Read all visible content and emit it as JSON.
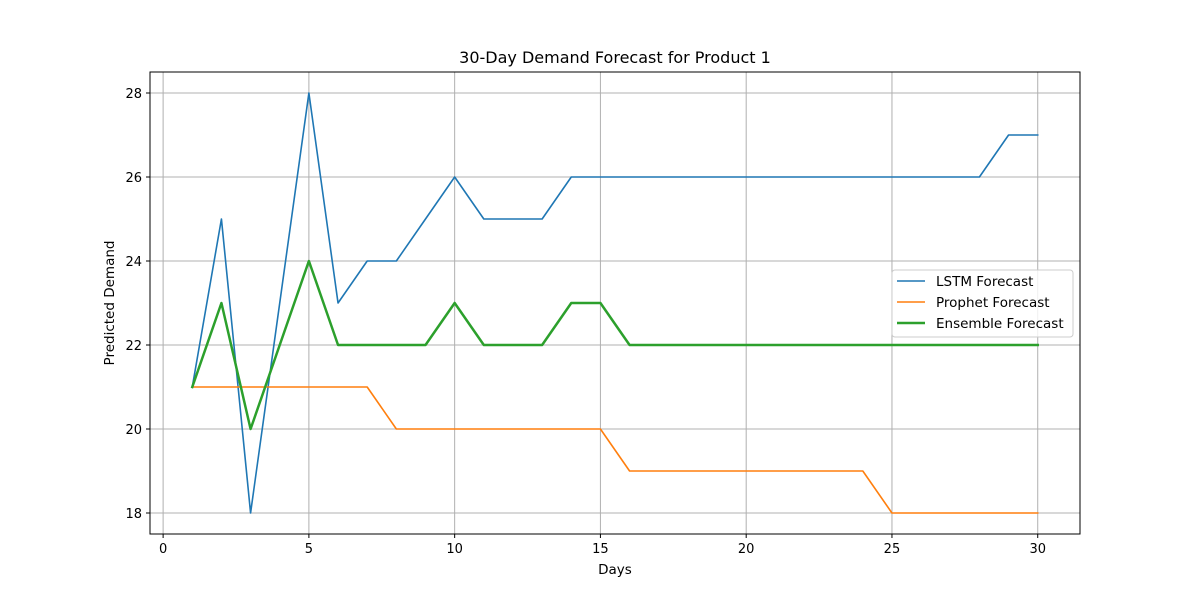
{
  "chart_data": {
    "type": "line",
    "title": "30-Day Demand Forecast for Product 1",
    "xlabel": "Days",
    "ylabel": "Predicted Demand",
    "xlim": [
      -0.45,
      31.45
    ],
    "ylim": [
      17.5,
      28.5
    ],
    "xticks": [
      0,
      5,
      10,
      15,
      20,
      25,
      30
    ],
    "yticks": [
      18,
      20,
      22,
      24,
      26,
      28
    ],
    "grid": true,
    "legend_position": "center-right",
    "x": [
      1,
      2,
      3,
      4,
      5,
      6,
      7,
      8,
      9,
      10,
      11,
      12,
      13,
      14,
      15,
      16,
      17,
      18,
      19,
      20,
      21,
      22,
      23,
      24,
      25,
      26,
      27,
      28,
      29,
      30
    ],
    "series": [
      {
        "name": "LSTM Forecast",
        "color": "#1f77b4",
        "values": [
          21,
          25,
          18,
          23,
          28,
          23,
          24,
          24,
          25,
          26,
          25,
          25,
          25,
          26,
          26,
          26,
          26,
          26,
          26,
          26,
          26,
          26,
          26,
          26,
          26,
          26,
          26,
          26,
          27,
          27
        ]
      },
      {
        "name": "Prophet Forecast",
        "color": "#ff7f0e",
        "values": [
          21,
          21,
          21,
          21,
          21,
          21,
          21,
          20,
          20,
          20,
          20,
          20,
          20,
          20,
          20,
          19,
          19,
          19,
          19,
          19,
          19,
          19,
          19,
          19,
          18,
          18,
          18,
          18,
          18,
          18
        ]
      },
      {
        "name": "Ensemble Forecast",
        "color": "#2ca02c",
        "values": [
          21,
          23,
          20,
          22,
          24,
          22,
          22,
          22,
          22,
          23,
          22,
          22,
          22,
          23,
          23,
          22,
          22,
          22,
          22,
          22,
          22,
          22,
          22,
          22,
          22,
          22,
          22,
          22,
          22,
          22
        ]
      }
    ]
  }
}
